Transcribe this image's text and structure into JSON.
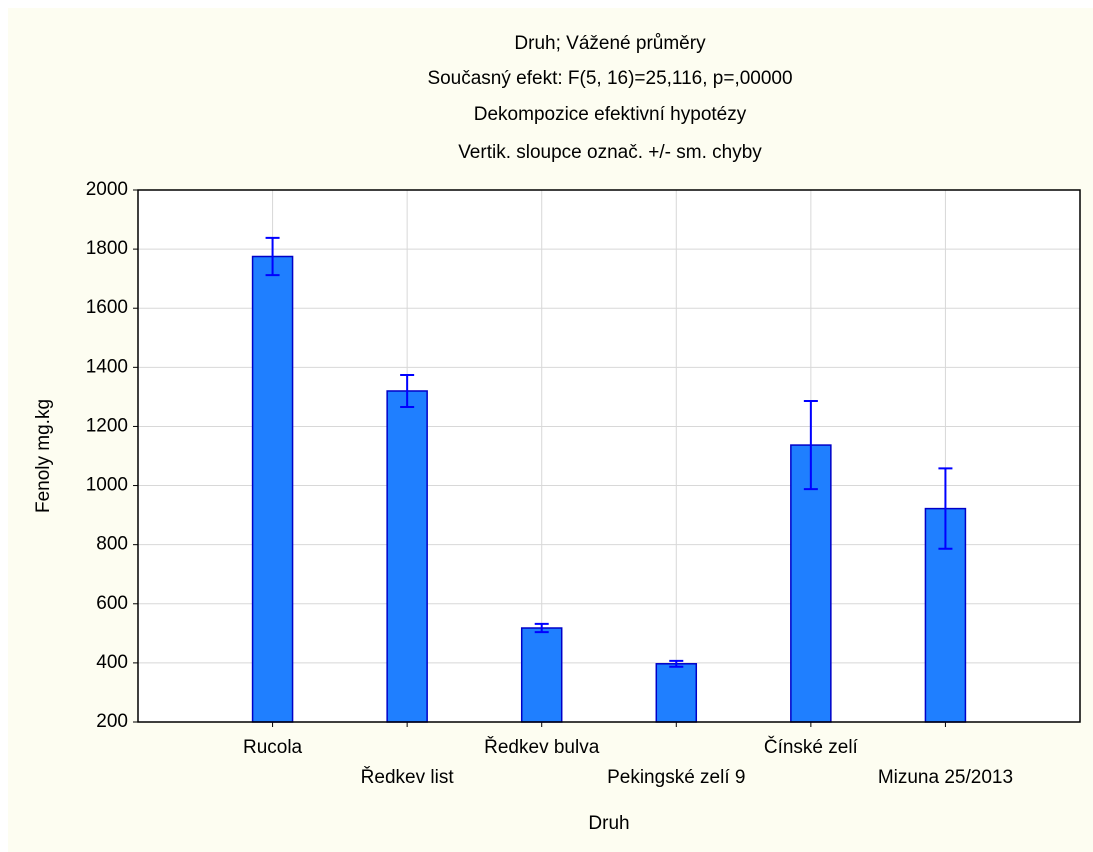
{
  "chart_data": {
    "type": "bar",
    "title": "Druh; Vážené průměry",
    "subtitles": [
      "Současný efekt: F(5, 16)=25,116, p=,00000",
      "Dekompozice efektivní hypotézy",
      "Vertik. sloupce označ. +/- sm. chyby"
    ],
    "x_label": "Druh",
    "y_label": "Fenoly mg.kg",
    "categories": [
      "Rucola",
      "Ředkev list",
      "Ředkev bulva",
      "Pekingské zelí 9",
      "Čínské zelí",
      "Mizuna 25/2013"
    ],
    "values": [
      1775,
      1320,
      518,
      397,
      1137,
      922
    ],
    "errors": [
      63,
      54,
      14,
      10,
      149,
      136
    ],
    "color": "#1f7fff",
    "edge_color": "#0000c8",
    "error_color": "#0000ff",
    "ylim": [
      200,
      2000
    ],
    "yticks": [
      200,
      400,
      600,
      800,
      1000,
      1200,
      1400,
      1600,
      1800,
      2000
    ],
    "grid": true
  }
}
